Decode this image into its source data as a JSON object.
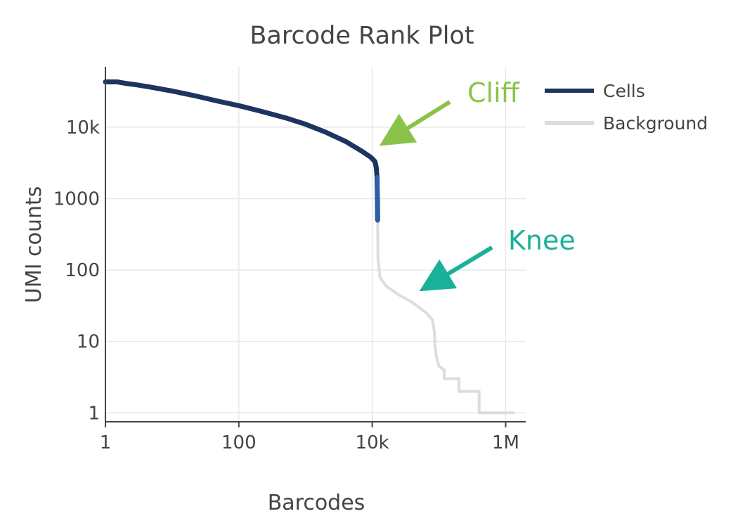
{
  "chart_data": {
    "type": "line",
    "title": "Barcode Rank Plot",
    "xlabel": "Barcodes",
    "ylabel": "UMI counts",
    "x_scale": "log",
    "y_scale": "log",
    "xlim": [
      1,
      2000000
    ],
    "ylim": [
      0.75,
      70000
    ],
    "x_ticks": [
      {
        "value": 1,
        "label": "1"
      },
      {
        "value": 100,
        "label": "100"
      },
      {
        "value": 10000,
        "label": "10k"
      },
      {
        "value": 1000000,
        "label": "1M"
      }
    ],
    "y_ticks": [
      {
        "value": 1,
        "label": "1"
      },
      {
        "value": 10,
        "label": "10"
      },
      {
        "value": 100,
        "label": "100"
      },
      {
        "value": 1000,
        "label": "1000"
      },
      {
        "value": 10000,
        "label": "10k"
      }
    ],
    "grid": true,
    "legend_position": "right",
    "series": [
      {
        "name": "Cells",
        "color": "#1d3461",
        "accent_color": "#2b5fb4",
        "points": [
          [
            1,
            43000
          ],
          [
            1.5,
            43000
          ],
          [
            2,
            41000
          ],
          [
            3,
            39000
          ],
          [
            5,
            36000
          ],
          [
            10,
            32000
          ],
          [
            20,
            28000
          ],
          [
            50,
            23000
          ],
          [
            100,
            20000
          ],
          [
            200,
            17000
          ],
          [
            500,
            13500
          ],
          [
            1000,
            11000
          ],
          [
            2000,
            8500
          ],
          [
            4000,
            6300
          ],
          [
            7000,
            4600
          ],
          [
            9500,
            3800
          ],
          [
            11000,
            3300
          ],
          [
            11500,
            2700
          ],
          [
            11800,
            2000
          ],
          [
            11900,
            1200
          ],
          [
            12000,
            800
          ],
          [
            12050,
            500
          ]
        ]
      },
      {
        "name": "Background",
        "color": "#dddddd",
        "points": [
          [
            12050,
            500
          ],
          [
            12100,
            300
          ],
          [
            12200,
            150
          ],
          [
            13000,
            80
          ],
          [
            16000,
            60
          ],
          [
            25000,
            45
          ],
          [
            40000,
            35
          ],
          [
            65000,
            25
          ],
          [
            80000,
            20
          ],
          [
            85000,
            14
          ],
          [
            88000,
            8
          ],
          [
            92000,
            6
          ],
          [
            100000,
            4.5
          ],
          [
            120000,
            4
          ],
          [
            120000,
            3
          ],
          [
            200000,
            3
          ],
          [
            200000,
            2
          ],
          [
            400000,
            2
          ],
          [
            400000,
            1
          ],
          [
            1300000,
            1
          ]
        ]
      }
    ],
    "annotations": [
      {
        "text": "Cliff",
        "color": "#8bc34a",
        "target": [
          11500,
          3500
        ]
      },
      {
        "text": "Knee",
        "color": "#1ab09a",
        "target": [
          60000,
          35
        ]
      }
    ]
  }
}
